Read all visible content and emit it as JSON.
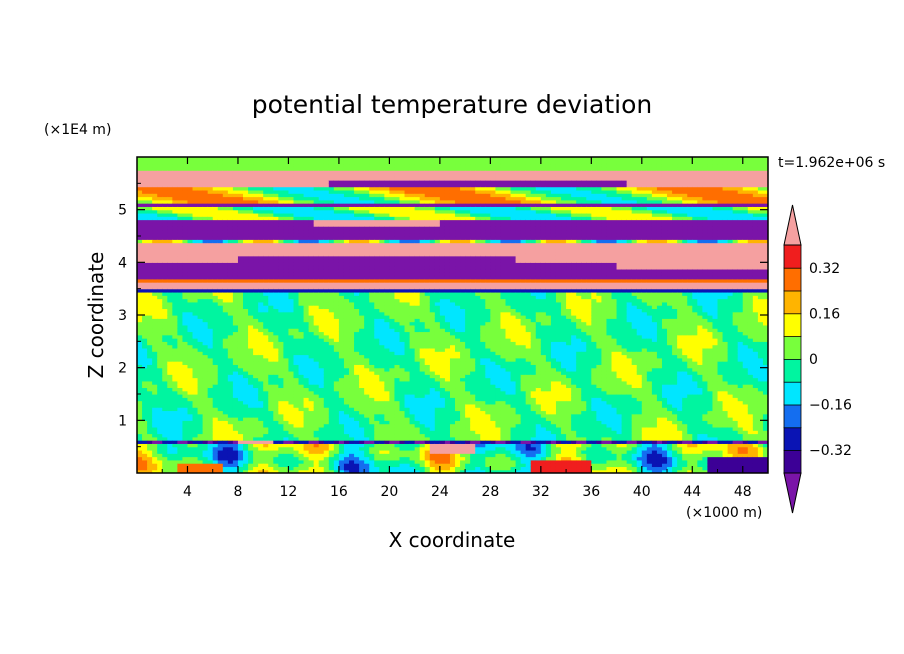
{
  "chart_data": {
    "type": "heatmap",
    "title": "potential temperature deviation",
    "xlabel": "X coordinate",
    "ylabel": "Z coordinate",
    "x_units": "(×1000 m)",
    "y_units": "(×1E4 m)",
    "time_label": "t=1.962e+06 s",
    "xlim": [
      0,
      50
    ],
    "ylim": [
      0,
      6
    ],
    "x_ticks": [
      4,
      8,
      12,
      16,
      20,
      24,
      28,
      32,
      36,
      40,
      44,
      48
    ],
    "y_ticks": [
      1,
      2,
      3,
      4,
      5
    ],
    "colorbar": {
      "levels": [
        -0.4,
        -0.32,
        -0.24,
        -0.16,
        -0.08,
        0,
        0.08,
        0.16,
        0.24,
        0.32,
        0.4
      ],
      "labels": [
        "0.32",
        "0.16",
        "0",
        "−0.16",
        "−0.32"
      ],
      "label_values": [
        0.32,
        0.16,
        0,
        -0.16,
        -0.32
      ],
      "colors": [
        "#7a14a8",
        "#3c0096",
        "#0a14b4",
        "#146ef0",
        "#00e6ff",
        "#00f5a0",
        "#78ff3c",
        "#ffff00",
        "#ffb400",
        "#ff6e00",
        "#f01e1e",
        "#f5a0a0"
      ]
    },
    "bands": [
      {
        "z": [
          5.45,
          5.75
        ],
        "value": 0.45,
        "label": "upper pink band"
      },
      {
        "z": [
          5.05,
          5.15
        ],
        "value": -0.45,
        "label": "upper purple band"
      },
      {
        "z": [
          4.45,
          4.8
        ],
        "value": -0.45,
        "label": "purple band"
      },
      {
        "z": [
          4.15,
          4.4
        ],
        "value": 0.45,
        "label": "pink band"
      },
      {
        "z": [
          3.7,
          4.0
        ],
        "value": -0.45,
        "label": "lower purple band"
      },
      {
        "z": [
          3.48,
          3.65
        ],
        "value": 0.45,
        "label": "lowest pink band"
      },
      {
        "z": [
          0.6,
          3.45
        ],
        "value": 0.0,
        "label": "near-zero mid layer"
      },
      {
        "z": [
          0.0,
          0.6
        ],
        "value": 0.05,
        "label": "boundary layer"
      }
    ]
  }
}
